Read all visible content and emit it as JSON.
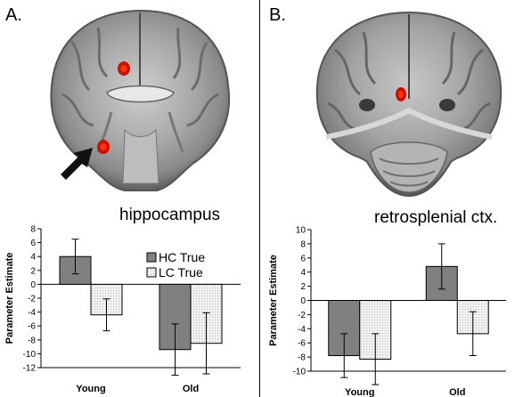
{
  "panels": [
    {
      "label": "A.",
      "region": "hippocampus"
    },
    {
      "label": "B.",
      "region": "retrosplenial ctx."
    }
  ],
  "chart_data": [
    {
      "type": "bar",
      "title": "hippocampus",
      "ylabel": "Parameter Estimate",
      "xlabel": "",
      "categories": [
        "Young",
        "Old"
      ],
      "series": [
        {
          "name": "HC True",
          "values": [
            4.0,
            -9.4
          ],
          "errors": [
            2.5,
            3.7
          ]
        },
        {
          "name": "LC True",
          "values": [
            -4.4,
            -8.5
          ],
          "errors": [
            2.3,
            4.4
          ]
        }
      ],
      "ylim": [
        -12,
        8
      ],
      "yticks": [
        8,
        6,
        4,
        2,
        0,
        -2,
        -4,
        -6,
        -8,
        -10,
        -12
      ],
      "legend": "top-right",
      "grid": false,
      "colors": {
        "HC True": "#808080",
        "LC True": "#f2f2f2"
      }
    },
    {
      "type": "bar",
      "title": "retrosplenial ctx.",
      "ylabel": "Parameter Estimate",
      "xlabel": "",
      "categories": [
        "Young",
        "Old"
      ],
      "series": [
        {
          "name": "HC True",
          "values": [
            -7.8,
            4.8
          ],
          "errors": [
            3.1,
            3.2
          ]
        },
        {
          "name": "LC True",
          "values": [
            -8.3,
            -4.7
          ],
          "errors": [
            3.6,
            3.1
          ]
        }
      ],
      "ylim": [
        -10,
        10
      ],
      "yticks": [
        10,
        8,
        6,
        4,
        2,
        0,
        -2,
        -4,
        -6,
        -8,
        -10
      ],
      "legend": "none",
      "grid": false,
      "colors": {
        "HC True": "#808080",
        "LC True": "#f2f2f2"
      }
    }
  ]
}
